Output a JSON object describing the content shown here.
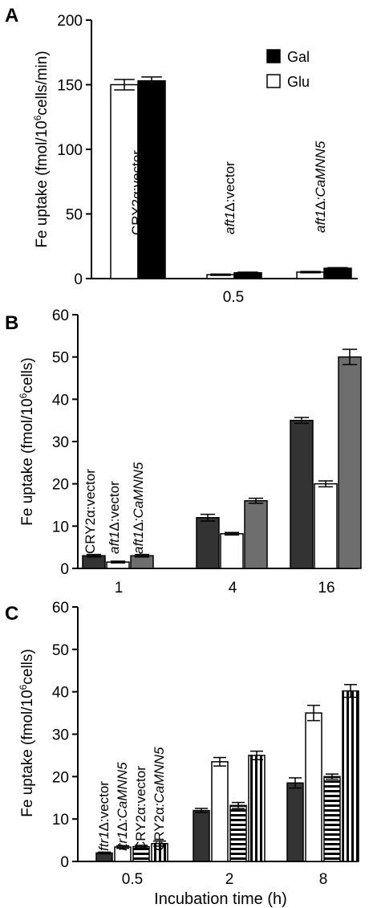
{
  "chart_data": [
    {
      "panel": "A",
      "type": "bar",
      "ylabel_parts": [
        "Fe uptake (fmol/10",
        "6",
        "cells/min)"
      ],
      "ylim": [
        0,
        200
      ],
      "yticks": [
        "0",
        "50",
        "100",
        "150",
        "200"
      ],
      "categories": [
        "0.5"
      ],
      "legend": [
        {
          "name": "Gal",
          "color": "#000000"
        },
        {
          "name": "Glu",
          "color": "#ffffff"
        }
      ],
      "groups": [
        {
          "label": [
            "CRY2",
            "α",
            ":vector"
          ],
          "italic": [
            false,
            false,
            false
          ],
          "glu": 150,
          "glu_err": 4,
          "gal": 153,
          "gal_err": 3
        },
        {
          "label": [
            "aft1",
            "Δ",
            ":vector"
          ],
          "italic": [
            true,
            false,
            false
          ],
          "glu": 3,
          "glu_err": 0.5,
          "gal": 4.5,
          "gal_err": 0.5
        },
        {
          "label": [
            "aft1",
            "Δ",
            ":CaMNN5"
          ],
          "italic": [
            true,
            false,
            true
          ],
          "glu": 5,
          "glu_err": 0.5,
          "gal": 8,
          "gal_err": 0.5
        }
      ]
    },
    {
      "panel": "B",
      "type": "bar",
      "ylabel_parts": [
        "Fe uptake (fmol/10",
        "6",
        "cells)"
      ],
      "ylim": [
        0,
        60
      ],
      "yticks": [
        "0",
        "10",
        "20",
        "30",
        "40",
        "50",
        "60"
      ],
      "categories": [
        "1",
        "4",
        "16"
      ],
      "series": [
        {
          "label": [
            "CRY2",
            "α",
            ":vector"
          ],
          "italic": [
            false,
            false,
            false
          ],
          "color": "#333333",
          "pattern": "solid",
          "values": [
            3,
            12,
            35
          ],
          "errors": [
            0.3,
            0.8,
            0.7
          ]
        },
        {
          "label": [
            "aft1",
            "Δ",
            ":vector"
          ],
          "italic": [
            true,
            false,
            false
          ],
          "color": "#ffffff",
          "pattern": "solid",
          "values": [
            1.5,
            8.2,
            20
          ],
          "errors": [
            0.2,
            0.3,
            0.7
          ]
        },
        {
          "label": [
            "aft1",
            "Δ",
            ":CaMNN5"
          ],
          "italic": [
            true,
            false,
            true
          ],
          "color": "#6e6e6e",
          "pattern": "solid",
          "values": [
            3,
            16,
            50
          ],
          "errors": [
            0.3,
            0.6,
            1.8
          ]
        }
      ]
    },
    {
      "panel": "C",
      "type": "bar",
      "ylabel_parts": [
        "Fe uptake (fmol/10",
        "6",
        "cells)"
      ],
      "ylim": [
        0,
        60
      ],
      "yticks": [
        "0",
        "10",
        "20",
        "30",
        "40",
        "50",
        "60"
      ],
      "categories": [
        "0.5",
        "2",
        "8"
      ],
      "xlabel": "Incubation time (h)",
      "series": [
        {
          "label": [
            "ftr1",
            "Δ",
            ":vector"
          ],
          "italic": [
            true,
            false,
            false
          ],
          "color": "#333333",
          "pattern": "solid",
          "values": [
            2,
            12,
            18.5
          ],
          "errors": [
            0.2,
            0.5,
            1.2
          ]
        },
        {
          "label": [
            "ftr1",
            "Δ",
            ":CaMNN5"
          ],
          "italic": [
            true,
            false,
            true
          ],
          "color": "#ffffff",
          "pattern": "solid",
          "values": [
            3.4,
            23.5,
            35
          ],
          "errors": [
            0.3,
            1.0,
            1.8
          ]
        },
        {
          "label": [
            "CRY2",
            "α",
            ":vector"
          ],
          "italic": [
            false,
            false,
            false
          ],
          "color": "#ffffff",
          "pattern": "hlines",
          "values": [
            3.5,
            13.2,
            20
          ],
          "errors": [
            0.3,
            0.7,
            0.6
          ]
        },
        {
          "label": [
            "CRY2",
            "α",
            ":CaMNN5"
          ],
          "italic": [
            false,
            false,
            true
          ],
          "color": "#ffffff",
          "pattern": "vlines",
          "values": [
            4.2,
            25,
            40.2
          ],
          "errors": [
            0.6,
            1.0,
            1.5
          ]
        }
      ]
    }
  ]
}
